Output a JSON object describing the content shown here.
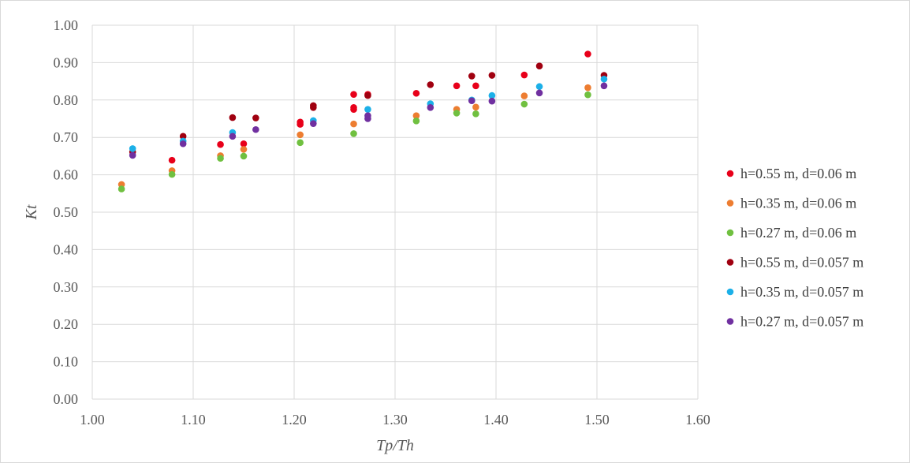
{
  "chart_data": {
    "type": "scatter",
    "title": "",
    "xlabel": "Tp/Th",
    "ylabel": "Kt",
    "xlim": [
      1.0,
      1.6
    ],
    "ylim": [
      0.0,
      1.0
    ],
    "x_ticks": [
      "1.00",
      "1.10",
      "1.20",
      "1.30",
      "1.40",
      "1.50",
      "1.60"
    ],
    "y_ticks": [
      "0.00",
      "0.10",
      "0.20",
      "0.30",
      "0.40",
      "0.50",
      "0.60",
      "0.70",
      "0.80",
      "0.90",
      "1.00"
    ],
    "grid": true,
    "legend_position": "right",
    "series": [
      {
        "name": "h=0.55 m, d=0.06 m",
        "color": "#e8001a",
        "points": [
          [
            1.079,
            0.639
          ],
          [
            1.127,
            0.681
          ],
          [
            1.15,
            0.683
          ],
          [
            1.206,
            0.741
          ],
          [
            1.206,
            0.735
          ],
          [
            1.259,
            0.815
          ],
          [
            1.259,
            0.78
          ],
          [
            1.259,
            0.775
          ],
          [
            1.273,
            0.815
          ],
          [
            1.321,
            0.818
          ],
          [
            1.361,
            0.838
          ],
          [
            1.38,
            0.838
          ],
          [
            1.428,
            0.867
          ],
          [
            1.491,
            0.923
          ]
        ]
      },
      {
        "name": "h=0.35 m, d=0.06 m",
        "color": "#ed7d31",
        "points": [
          [
            1.029,
            0.574
          ],
          [
            1.079,
            0.611
          ],
          [
            1.127,
            0.651
          ],
          [
            1.15,
            0.668
          ],
          [
            1.206,
            0.707
          ],
          [
            1.259,
            0.736
          ],
          [
            1.321,
            0.758
          ],
          [
            1.361,
            0.775
          ],
          [
            1.38,
            0.781
          ],
          [
            1.428,
            0.811
          ],
          [
            1.491,
            0.833
          ]
        ]
      },
      {
        "name": "h=0.27 m, d=0.06 m",
        "color": "#70c040",
        "points": [
          [
            1.029,
            0.562
          ],
          [
            1.079,
            0.601
          ],
          [
            1.127,
            0.644
          ],
          [
            1.15,
            0.65
          ],
          [
            1.206,
            0.686
          ],
          [
            1.259,
            0.71
          ],
          [
            1.321,
            0.744
          ],
          [
            1.361,
            0.765
          ],
          [
            1.38,
            0.763
          ],
          [
            1.428,
            0.789
          ],
          [
            1.491,
            0.814
          ]
        ]
      },
      {
        "name": "h=0.55 m, d=0.057 m",
        "color": "#a00010",
        "points": [
          [
            1.04,
            0.661
          ],
          [
            1.09,
            0.703
          ],
          [
            1.139,
            0.753
          ],
          [
            1.162,
            0.752
          ],
          [
            1.219,
            0.785
          ],
          [
            1.219,
            0.78
          ],
          [
            1.273,
            0.812
          ],
          [
            1.335,
            0.841
          ],
          [
            1.376,
            0.864
          ],
          [
            1.396,
            0.866
          ],
          [
            1.443,
            0.891
          ],
          [
            1.507,
            0.866
          ]
        ]
      },
      {
        "name": "h=0.35 m, d=0.057 m",
        "color": "#1cb0e8",
        "points": [
          [
            1.04,
            0.67
          ],
          [
            1.09,
            0.69
          ],
          [
            1.139,
            0.713
          ],
          [
            1.219,
            0.745
          ],
          [
            1.273,
            0.775
          ],
          [
            1.335,
            0.79
          ],
          [
            1.376,
            0.8
          ],
          [
            1.396,
            0.812
          ],
          [
            1.443,
            0.836
          ],
          [
            1.507,
            0.856
          ]
        ]
      },
      {
        "name": "h=0.27 m, d=0.057 m",
        "color": "#7030a0",
        "points": [
          [
            1.04,
            0.652
          ],
          [
            1.09,
            0.683
          ],
          [
            1.139,
            0.703
          ],
          [
            1.162,
            0.721
          ],
          [
            1.219,
            0.737
          ],
          [
            1.273,
            0.758
          ],
          [
            1.273,
            0.75
          ],
          [
            1.335,
            0.78
          ],
          [
            1.376,
            0.798
          ],
          [
            1.396,
            0.797
          ],
          [
            1.443,
            0.819
          ],
          [
            1.507,
            0.838
          ]
        ]
      }
    ]
  }
}
